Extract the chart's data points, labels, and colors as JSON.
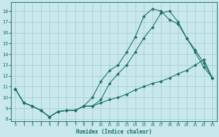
{
  "xlabel": "Humidex (Indice chaleur)",
  "xlim": [
    -0.5,
    23.5
  ],
  "ylim": [
    7.8,
    18.8
  ],
  "yticks": [
    8,
    9,
    10,
    11,
    12,
    13,
    14,
    15,
    16,
    17,
    18
  ],
  "xticks": [
    0,
    1,
    2,
    3,
    4,
    5,
    6,
    7,
    8,
    9,
    10,
    11,
    12,
    13,
    14,
    15,
    16,
    17,
    18,
    19,
    20,
    21,
    22,
    23
  ],
  "bg_color": "#c8e8ec",
  "grid_color": "#a0c8d0",
  "line_color": "#1a6e66",
  "line1_x": [
    0,
    1,
    2,
    3,
    4,
    5,
    6,
    7,
    8,
    9,
    10,
    11,
    12,
    13,
    14,
    15,
    16,
    17,
    18,
    19,
    20,
    21,
    22,
    23
  ],
  "line1_y": [
    10.8,
    9.5,
    9.2,
    8.8,
    8.2,
    8.7,
    8.8,
    8.8,
    9.2,
    10.0,
    11.5,
    12.5,
    13.0,
    14.2,
    15.6,
    17.5,
    18.2,
    18.0,
    17.2,
    16.8,
    15.5,
    14.4,
    13.2,
    11.8
  ],
  "line2_x": [
    0,
    1,
    2,
    3,
    4,
    5,
    6,
    7,
    8,
    9,
    10,
    11,
    12,
    13,
    14,
    15,
    16,
    17,
    18,
    19,
    20,
    21,
    22,
    23
  ],
  "line2_y": [
    10.8,
    9.5,
    9.2,
    8.8,
    8.2,
    8.7,
    8.8,
    8.8,
    9.2,
    9.2,
    9.8,
    11.3,
    12.2,
    13.0,
    14.2,
    15.5,
    16.5,
    17.8,
    18.0,
    17.0,
    15.5,
    14.2,
    12.8,
    11.8
  ],
  "line3_x": [
    0,
    1,
    2,
    3,
    4,
    5,
    6,
    7,
    8,
    9,
    10,
    11,
    12,
    13,
    14,
    15,
    16,
    17,
    18,
    19,
    20,
    21,
    22,
    23
  ],
  "line3_y": [
    10.8,
    9.5,
    9.2,
    8.8,
    8.2,
    8.7,
    8.8,
    8.8,
    9.2,
    9.2,
    9.5,
    9.8,
    10.0,
    10.3,
    10.7,
    11.0,
    11.3,
    11.5,
    11.8,
    12.2,
    12.5,
    13.0,
    13.5,
    11.8
  ]
}
